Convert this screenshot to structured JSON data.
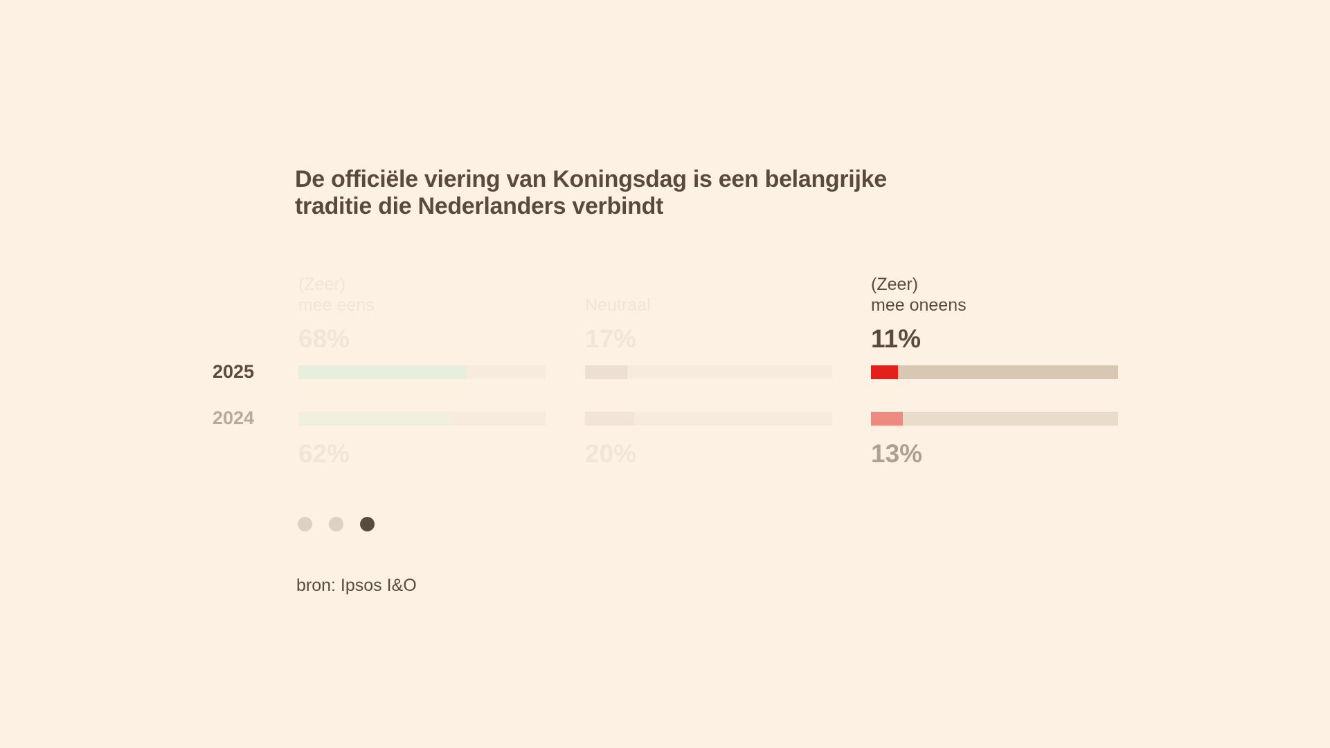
{
  "chart_data": {
    "type": "bar",
    "title": "De officiële viering van Koningsdag is een belangrijke traditie die Nederlanders verbindt",
    "categories": [
      {
        "label_line1": "(Zeer)",
        "label_line2": "mee eens"
      },
      {
        "label_line1": "",
        "label_line2": "Neutraal"
      },
      {
        "label_line1": "(Zeer)",
        "label_line2": "mee oneens"
      }
    ],
    "series": [
      {
        "name": "2025",
        "values": [
          68,
          17,
          11
        ],
        "labels": [
          "68%",
          "17%",
          "11%"
        ]
      },
      {
        "name": "2024",
        "values": [
          62,
          20,
          13
        ],
        "labels": [
          "62%",
          "20%",
          "13%"
        ]
      }
    ],
    "unit": "%",
    "xlim": [
      0,
      100
    ],
    "highlighted_category": 2,
    "colors": {
      "background": "#fdf1e3",
      "text": "#5a4a3d",
      "faded_text": "#f1e5da",
      "year_2024_text": "#b5aa9e",
      "active_2025_fill": "#e3211c",
      "active_2025_track": "#d8c7b3",
      "active_2024_fill": "#ee8b80",
      "active_2024_track": "#eadccb",
      "faded_agree_2025_fill": "#e8eede",
      "faded_agree_2024_fill": "#f0efe0",
      "faded_neutral_2025_fill": "#ede0d2",
      "faded_neutral_2024_fill": "#f2e5d8",
      "faded_track": "#f7ebe0"
    }
  },
  "pagination": {
    "count": 3,
    "active_index": 2
  },
  "source": "bron: Ipsos I&O"
}
